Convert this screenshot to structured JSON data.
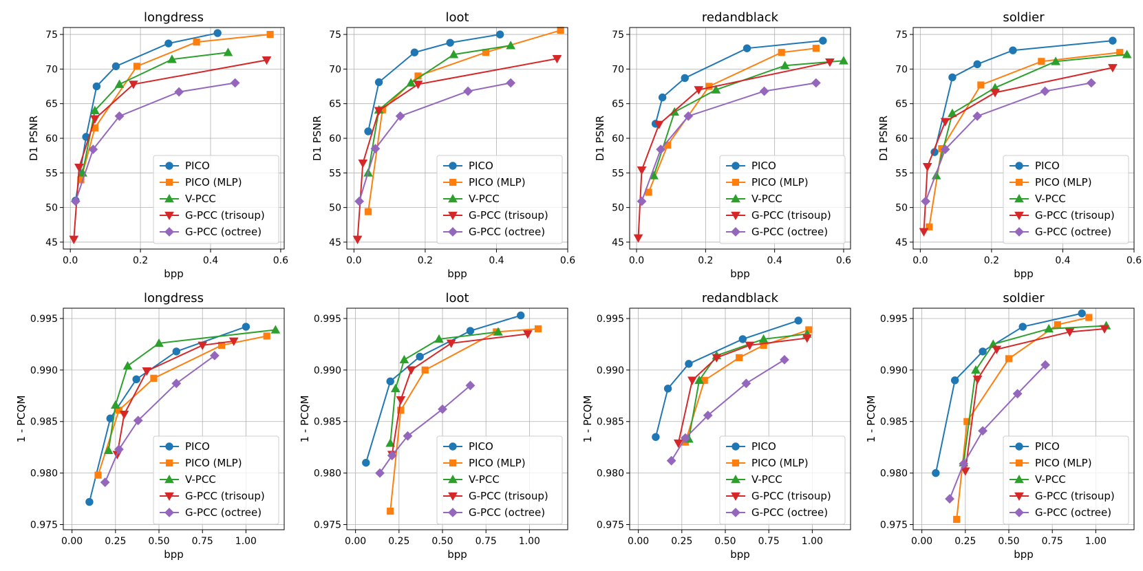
{
  "series_styles": [
    {
      "name": "PICO",
      "color": "#1f77b4",
      "marker": "circle"
    },
    {
      "name": "PICO (MLP)",
      "color": "#ff7f0e",
      "marker": "square"
    },
    {
      "name": "V-PCC",
      "color": "#2ca02c",
      "marker": "triangle-up"
    },
    {
      "name": "G-PCC (trisoup)",
      "color": "#d62728",
      "marker": "triangle-down"
    },
    {
      "name": "G-PCC (octree)",
      "color": "#9467bd",
      "marker": "diamond"
    }
  ],
  "chart_data": [
    {
      "type": "line",
      "title": "longdress",
      "xlabel": "bpp",
      "ylabel": "D1 PSNR",
      "xlim": [
        -0.02,
        0.61
      ],
      "ylim": [
        44,
        76
      ],
      "xticks": [
        0.0,
        0.2,
        0.4,
        0.6
      ],
      "xticklabels": [
        "0.0",
        "0.2",
        "0.4",
        "0.6"
      ],
      "yticks": [
        45,
        50,
        55,
        60,
        65,
        70,
        75
      ],
      "yticklabels": [
        "45",
        "50",
        "55",
        "60",
        "65",
        "70",
        "75"
      ],
      "legend": "lower-right",
      "series": [
        {
          "name": "PICO",
          "x": [
            0.015,
            0.045,
            0.075,
            0.13,
            0.28,
            0.42
          ],
          "y": [
            51.0,
            60.2,
            67.5,
            70.4,
            73.7,
            75.2
          ]
        },
        {
          "name": "PICO (MLP)",
          "x": [
            0.03,
            0.07,
            0.19,
            0.36,
            0.57
          ],
          "y": [
            54.0,
            61.5,
            70.4,
            73.9,
            75.0
          ]
        },
        {
          "name": "V-PCC",
          "x": [
            0.035,
            0.07,
            0.14,
            0.29,
            0.45
          ],
          "y": [
            55.0,
            64.0,
            67.8,
            71.4,
            72.4
          ]
        },
        {
          "name": "G-PCC (trisoup)",
          "x": [
            0.01,
            0.025,
            0.07,
            0.18,
            0.56
          ],
          "y": [
            45.4,
            55.8,
            62.8,
            67.8,
            71.3
          ]
        },
        {
          "name": "G-PCC (octree)",
          "x": [
            0.015,
            0.065,
            0.14,
            0.31,
            0.47
          ],
          "y": [
            50.9,
            58.4,
            63.2,
            66.7,
            68.0
          ]
        }
      ]
    },
    {
      "type": "line",
      "title": "loot",
      "xlabel": "bpp",
      "ylabel": "D1 PSNR",
      "xlim": [
        -0.02,
        0.6
      ],
      "ylim": [
        44,
        76
      ],
      "xticks": [
        0.0,
        0.2,
        0.4,
        0.6
      ],
      "xticklabels": [
        "0.0",
        "0.2",
        "0.4",
        "0.6"
      ],
      "yticks": [
        45,
        50,
        55,
        60,
        65,
        70,
        75
      ],
      "yticklabels": [
        "45",
        "50",
        "55",
        "60",
        "65",
        "70",
        "75"
      ],
      "legend": "lower-right",
      "series": [
        {
          "name": "PICO",
          "x": [
            0.04,
            0.07,
            0.17,
            0.27,
            0.41
          ],
          "y": [
            61.0,
            68.1,
            72.4,
            73.8,
            75.0
          ]
        },
        {
          "name": "PICO (MLP)",
          "x": [
            0.04,
            0.08,
            0.18,
            0.37,
            0.58
          ],
          "y": [
            49.4,
            64.1,
            69.0,
            72.4,
            75.6
          ]
        },
        {
          "name": "V-PCC",
          "x": [
            0.04,
            0.07,
            0.16,
            0.28,
            0.44
          ],
          "y": [
            55.0,
            64.1,
            68.0,
            72.1,
            73.4
          ]
        },
        {
          "name": "G-PCC (trisoup)",
          "x": [
            0.01,
            0.025,
            0.07,
            0.18,
            0.57
          ],
          "y": [
            45.4,
            56.4,
            64.0,
            67.8,
            71.5
          ]
        },
        {
          "name": "G-PCC (octree)",
          "x": [
            0.015,
            0.06,
            0.13,
            0.32,
            0.44
          ],
          "y": [
            50.9,
            58.5,
            63.2,
            66.8,
            68.0
          ]
        }
      ]
    },
    {
      "type": "line",
      "title": "redandblack",
      "xlabel": "bpp",
      "ylabel": "D1 PSNR",
      "xlim": [
        -0.02,
        0.62
      ],
      "ylim": [
        44,
        76
      ],
      "xticks": [
        0.0,
        0.2,
        0.4,
        0.6
      ],
      "xticklabels": [
        "0.0",
        "0.2",
        "0.4",
        "0.6"
      ],
      "yticks": [
        45,
        50,
        55,
        60,
        65,
        70,
        75
      ],
      "yticklabels": [
        "45",
        "50",
        "55",
        "60",
        "65",
        "70",
        "75"
      ],
      "legend": "lower-right",
      "series": [
        {
          "name": "PICO",
          "x": [
            0.055,
            0.075,
            0.14,
            0.32,
            0.54
          ],
          "y": [
            62.1,
            65.9,
            68.7,
            73.0,
            74.1
          ]
        },
        {
          "name": "PICO (MLP)",
          "x": [
            0.035,
            0.09,
            0.21,
            0.42,
            0.52
          ],
          "y": [
            52.2,
            59.0,
            67.5,
            72.4,
            73.0
          ]
        },
        {
          "name": "V-PCC",
          "x": [
            0.05,
            0.11,
            0.23,
            0.43,
            0.6
          ],
          "y": [
            54.6,
            63.8,
            67.0,
            70.5,
            71.2
          ]
        },
        {
          "name": "G-PCC (trisoup)",
          "x": [
            0.005,
            0.015,
            0.065,
            0.18,
            0.56
          ],
          "y": [
            45.6,
            55.4,
            62.0,
            67.0,
            71.0
          ]
        },
        {
          "name": "G-PCC (octree)",
          "x": [
            0.015,
            0.07,
            0.15,
            0.37,
            0.52
          ],
          "y": [
            50.9,
            58.4,
            63.2,
            66.8,
            68.0
          ]
        }
      ]
    },
    {
      "type": "line",
      "title": "soldier",
      "xlabel": "bpp",
      "ylabel": "D1 PSNR",
      "xlim": [
        -0.02,
        0.6
      ],
      "ylim": [
        44,
        76
      ],
      "xticks": [
        0.0,
        0.2,
        0.4,
        0.6
      ],
      "xticklabels": [
        "0.0",
        "0.2",
        "0.4",
        "0.6"
      ],
      "yticks": [
        45,
        50,
        55,
        60,
        65,
        70,
        75
      ],
      "yticklabels": [
        "45",
        "50",
        "55",
        "60",
        "65",
        "70",
        "75"
      ],
      "legend": "lower-right",
      "series": [
        {
          "name": "PICO",
          "x": [
            0.04,
            0.09,
            0.16,
            0.26,
            0.54
          ],
          "y": [
            58.0,
            68.8,
            70.7,
            72.7,
            74.1
          ]
        },
        {
          "name": "PICO (MLP)",
          "x": [
            0.025,
            0.06,
            0.17,
            0.34,
            0.56
          ],
          "y": [
            47.2,
            58.5,
            67.7,
            71.1,
            72.4
          ]
        },
        {
          "name": "V-PCC",
          "x": [
            0.045,
            0.09,
            0.21,
            0.38,
            0.58
          ],
          "y": [
            54.6,
            63.6,
            67.3,
            71.1,
            72.1
          ]
        },
        {
          "name": "G-PCC (trisoup)",
          "x": [
            0.01,
            0.02,
            0.07,
            0.21,
            0.54
          ],
          "y": [
            46.5,
            55.9,
            62.4,
            66.6,
            70.2
          ]
        },
        {
          "name": "G-PCC (octree)",
          "x": [
            0.015,
            0.07,
            0.16,
            0.35,
            0.48
          ],
          "y": [
            50.9,
            58.4,
            63.2,
            66.8,
            68.0
          ]
        }
      ]
    },
    {
      "type": "line",
      "title": "longdress",
      "xlabel": "bpp",
      "ylabel": "1 - PCQM",
      "xlim": [
        -0.05,
        1.22
      ],
      "ylim": [
        0.9745,
        0.996
      ],
      "xticks": [
        0.0,
        0.25,
        0.5,
        0.75,
        1.0
      ],
      "xticklabels": [
        "0.00",
        "0.25",
        "0.50",
        "0.75",
        "1.00"
      ],
      "yticks": [
        0.975,
        0.98,
        0.985,
        0.99,
        0.995
      ],
      "yticklabels": [
        "0.975",
        "0.980",
        "0.985",
        "0.990",
        "0.995"
      ],
      "legend": "lower-right",
      "series": [
        {
          "name": "PICO",
          "x": [
            0.1,
            0.22,
            0.37,
            0.6,
            1.0
          ],
          "y": [
            0.9772,
            0.9853,
            0.9891,
            0.9918,
            0.9942
          ]
        },
        {
          "name": "PICO (MLP)",
          "x": [
            0.15,
            0.27,
            0.47,
            0.86,
            1.12
          ],
          "y": [
            0.9798,
            0.9861,
            0.9892,
            0.9924,
            0.9933
          ]
        },
        {
          "name": "V-PCC",
          "x": [
            0.21,
            0.25,
            0.32,
            0.5,
            1.17
          ],
          "y": [
            0.9822,
            0.9866,
            0.9904,
            0.9926,
            0.9939
          ]
        },
        {
          "name": "G-PCC (trisoup)",
          "x": [
            0.26,
            0.3,
            0.43,
            0.75,
            0.93
          ],
          "y": [
            0.9818,
            0.9857,
            0.9899,
            0.9924,
            0.9928
          ]
        },
        {
          "name": "G-PCC (octree)",
          "x": [
            0.19,
            0.27,
            0.38,
            0.6,
            0.82
          ],
          "y": [
            0.9791,
            0.9823,
            0.9851,
            0.9887,
            0.9914
          ]
        }
      ]
    },
    {
      "type": "line",
      "title": "loot",
      "xlabel": "bpp",
      "ylabel": "1 - PCQM",
      "xlim": [
        -0.05,
        1.22
      ],
      "ylim": [
        0.9745,
        0.996
      ],
      "xticks": [
        0.0,
        0.25,
        0.5,
        0.75,
        1.0
      ],
      "xticklabels": [
        "0.00",
        "0.25",
        "0.50",
        "0.75",
        "1.00"
      ],
      "yticks": [
        0.975,
        0.98,
        0.985,
        0.99,
        0.995
      ],
      "yticklabels": [
        "0.975",
        "0.980",
        "0.985",
        "0.990",
        "0.995"
      ],
      "legend": "lower-right",
      "series": [
        {
          "name": "PICO",
          "x": [
            0.06,
            0.2,
            0.37,
            0.66,
            0.95
          ],
          "y": [
            0.981,
            0.9889,
            0.9913,
            0.9938,
            0.9953
          ]
        },
        {
          "name": "PICO (MLP)",
          "x": [
            0.2,
            0.26,
            0.4,
            0.81,
            1.05
          ],
          "y": [
            0.9763,
            0.9861,
            0.99,
            0.9937,
            0.994
          ]
        },
        {
          "name": "V-PCC",
          "x": [
            0.2,
            0.23,
            0.28,
            0.48,
            0.82
          ],
          "y": [
            0.9829,
            0.9882,
            0.991,
            0.993,
            0.9937
          ]
        },
        {
          "name": "G-PCC (trisoup)",
          "x": [
            0.21,
            0.26,
            0.32,
            0.55,
            0.99
          ],
          "y": [
            0.9818,
            0.9871,
            0.99,
            0.9926,
            0.9935
          ]
        },
        {
          "name": "G-PCC (octree)",
          "x": [
            0.14,
            0.21,
            0.3,
            0.5,
            0.66
          ],
          "y": [
            0.98,
            0.9817,
            0.9836,
            0.9862,
            0.9885
          ]
        }
      ]
    },
    {
      "type": "line",
      "title": "redandblack",
      "xlabel": "bpp",
      "ylabel": "1 - PCQM",
      "xlim": [
        -0.05,
        1.22
      ],
      "ylim": [
        0.9745,
        0.996
      ],
      "xticks": [
        0.0,
        0.25,
        0.5,
        0.75,
        1.0
      ],
      "xticklabels": [
        "0.00",
        "0.25",
        "0.50",
        "0.75",
        "1.00"
      ],
      "yticks": [
        0.975,
        0.98,
        0.985,
        0.99,
        0.995
      ],
      "yticklabels": [
        "0.975",
        "0.980",
        "0.985",
        "0.990",
        "0.995"
      ],
      "legend": "lower-right",
      "series": [
        {
          "name": "PICO",
          "x": [
            0.1,
            0.17,
            0.29,
            0.6,
            0.92
          ],
          "y": [
            0.9835,
            0.9882,
            0.9906,
            0.993,
            0.9948
          ]
        },
        {
          "name": "PICO (MLP)",
          "x": [
            0.27,
            0.38,
            0.58,
            0.72,
            0.98
          ],
          "y": [
            0.983,
            0.989,
            0.9912,
            0.9924,
            0.9939
          ]
        },
        {
          "name": "V-PCC",
          "x": [
            0.29,
            0.35,
            0.45,
            0.72,
            0.97
          ],
          "y": [
            0.9833,
            0.989,
            0.9914,
            0.993,
            0.9935
          ]
        },
        {
          "name": "G-PCC (trisoup)",
          "x": [
            0.23,
            0.31,
            0.45,
            0.64,
            0.97
          ],
          "y": [
            0.9829,
            0.989,
            0.9912,
            0.9924,
            0.9931
          ]
        },
        {
          "name": "G-PCC (octree)",
          "x": [
            0.19,
            0.27,
            0.4,
            0.62,
            0.84
          ],
          "y": [
            0.9812,
            0.9834,
            0.9856,
            0.9887,
            0.991
          ]
        }
      ]
    },
    {
      "type": "line",
      "title": "soldier",
      "xlabel": "bpp",
      "ylabel": "1 - PCQM",
      "xlim": [
        -0.05,
        1.22
      ],
      "ylim": [
        0.9745,
        0.996
      ],
      "xticks": [
        0.0,
        0.25,
        0.5,
        0.75,
        1.0
      ],
      "xticklabels": [
        "0.00",
        "0.25",
        "0.50",
        "0.75",
        "1.00"
      ],
      "yticks": [
        0.975,
        0.98,
        0.985,
        0.99,
        0.995
      ],
      "yticklabels": [
        "0.975",
        "0.980",
        "0.985",
        "0.990",
        "0.995"
      ],
      "legend": "lower-right",
      "series": [
        {
          "name": "PICO",
          "x": [
            0.08,
            0.19,
            0.35,
            0.58,
            0.92
          ],
          "y": [
            0.98,
            0.989,
            0.9918,
            0.9942,
            0.9955
          ]
        },
        {
          "name": "PICO (MLP)",
          "x": [
            0.2,
            0.26,
            0.5,
            0.78,
            0.96
          ],
          "y": [
            0.9755,
            0.985,
            0.9911,
            0.9944,
            0.9951
          ]
        },
        {
          "name": "V-PCC",
          "x": [
            0.24,
            0.31,
            0.41,
            0.73,
            1.06
          ],
          "y": [
            0.981,
            0.99,
            0.9925,
            0.994,
            0.9943
          ]
        },
        {
          "name": "G-PCC (trisoup)",
          "x": [
            0.25,
            0.32,
            0.43,
            0.85,
            1.05
          ],
          "y": [
            0.9802,
            0.9891,
            0.992,
            0.9937,
            0.994
          ]
        },
        {
          "name": "G-PCC (octree)",
          "x": [
            0.16,
            0.24,
            0.35,
            0.55,
            0.71
          ],
          "y": [
            0.9775,
            0.9809,
            0.9841,
            0.9877,
            0.9905
          ]
        }
      ]
    }
  ]
}
